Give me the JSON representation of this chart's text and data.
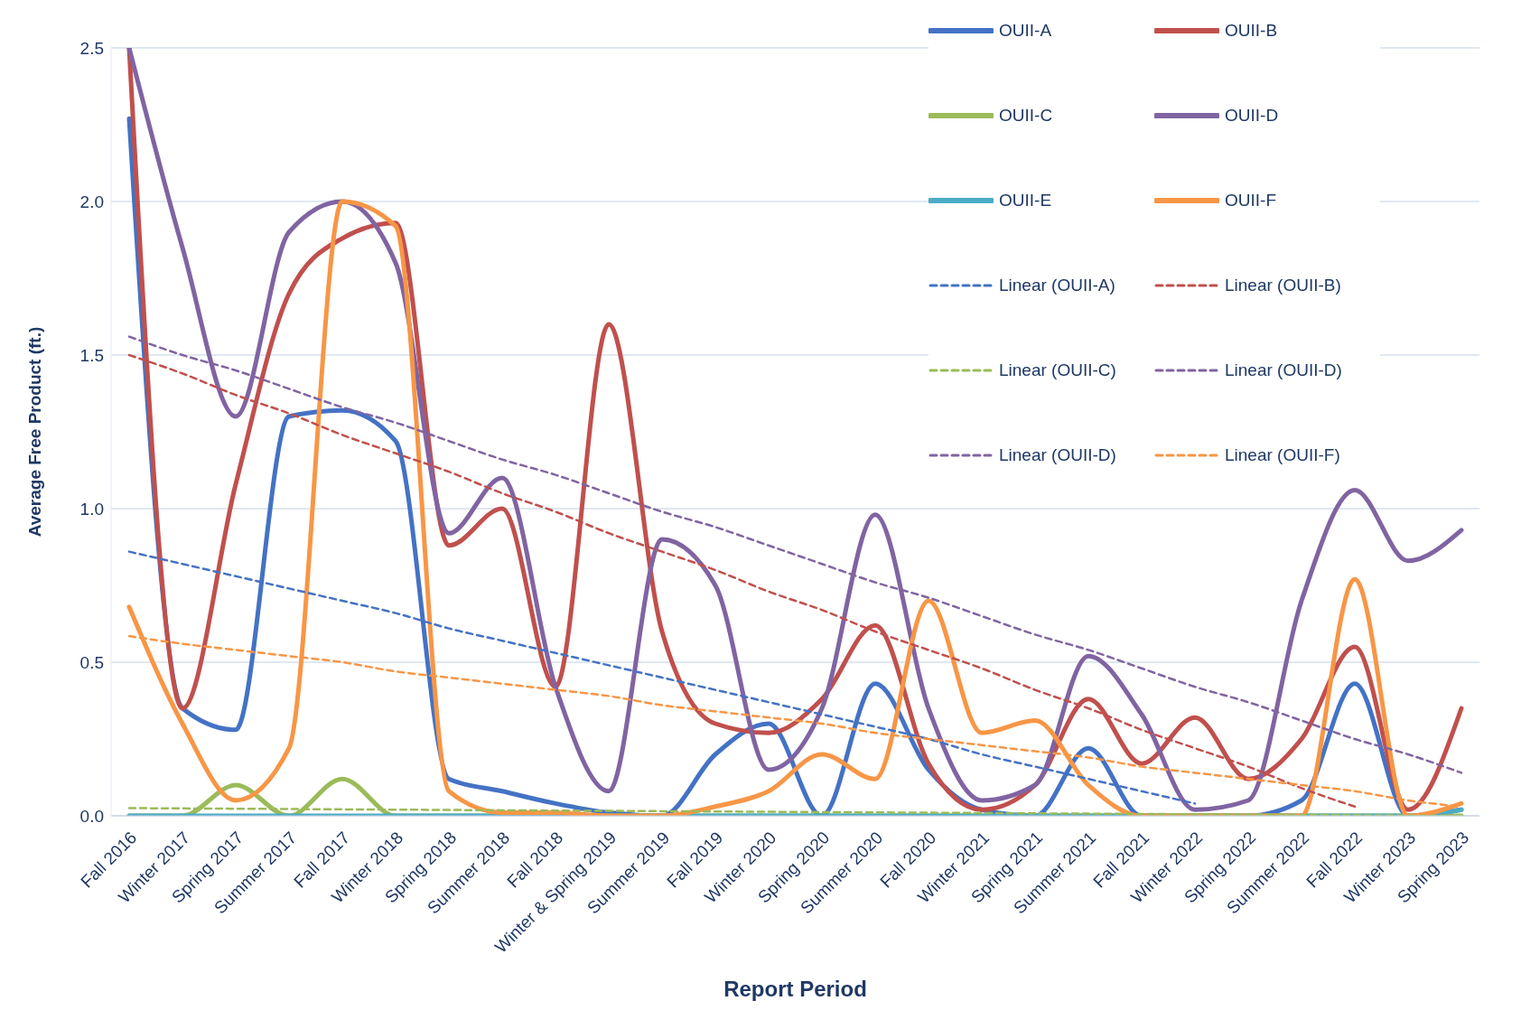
{
  "chart_data": {
    "type": "line",
    "xlabel": "Report Period",
    "ylabel": "Average Free Product (ft.)",
    "categories": [
      "Fall 2016",
      "Winter 2017",
      "Spring 2017",
      "Summer 2017",
      "Fall 2017",
      "Winter 2018",
      "Spring 2018",
      "Summer 2018",
      "Fall 2018",
      "Winter & Spring 2019",
      "Summer 2019",
      "Fall 2019",
      "Winter 2020",
      "Spring 2020",
      "Summer 2020",
      "Fall 2020",
      "Winter 2021",
      "Spring 2021",
      "Summer 2021",
      "Fall 2021",
      "Winter 2022",
      "Spring 2022",
      "Summer 2022",
      "Fall 2022",
      "Winter 2023",
      "Spring 2023"
    ],
    "ylim": [
      0,
      2.5
    ],
    "yticks": [
      {
        "value": 0,
        "label": "0.0"
      },
      {
        "value": 0.5,
        "label": "0.5"
      },
      {
        "value": 1,
        "label": "1.0"
      },
      {
        "value": 1.5,
        "label": "1.5"
      },
      {
        "value": 2,
        "label": "2.0"
      },
      {
        "value": 2.5,
        "label": "2.5"
      }
    ],
    "grid": "y",
    "legend": "top right",
    "marker": "none",
    "line_style": "solid",
    "series": [
      {
        "name": "OUII-A",
        "color": "#4472c4",
        "values": [
          2.27,
          0.35,
          0.28,
          1.3,
          1.32,
          1.22,
          0.12,
          0.08,
          0.04,
          0.01,
          0,
          0.2,
          0.3,
          0,
          0.43,
          0.15,
          0.02,
          0,
          0.22,
          0,
          0,
          0,
          0.05,
          0.43,
          0,
          0.02
        ]
      },
      {
        "name": "OUII-B",
        "color": "#c0504d",
        "values": [
          2.5,
          0.35,
          1.08,
          1.7,
          1.88,
          1.93,
          0.88,
          1,
          0.42,
          1.6,
          0.6,
          0.3,
          0.27,
          0.38,
          0.62,
          0.17,
          0.02,
          0.1,
          0.38,
          0.17,
          0.32,
          0.12,
          0.25,
          0.55,
          0.02,
          0.35
        ]
      },
      {
        "name": "OUII-C",
        "color": "#9bbb59",
        "values": [
          0,
          0,
          0.1,
          0,
          0.12,
          0,
          0,
          0,
          0,
          0,
          0,
          0,
          0,
          0,
          0,
          0,
          0,
          0,
          0,
          0,
          0,
          0,
          0,
          0,
          0,
          0
        ]
      },
      {
        "name": "OUII-D",
        "color": "#8064a2",
        "values": [
          2.5,
          1.85,
          1.3,
          1.9,
          2,
          1.8,
          0.92,
          1.1,
          0.42,
          0.08,
          0.9,
          0.75,
          0.15,
          0.35,
          0.98,
          0.35,
          0.05,
          0.1,
          0.52,
          0.33,
          0.02,
          0.05,
          0.7,
          1.06,
          0.83,
          0.93
        ]
      },
      {
        "name": "OUII-E",
        "color": "#4bacc6",
        "values": [
          0,
          0,
          0,
          0,
          0,
          0,
          0,
          0,
          0,
          0,
          0,
          0,
          0,
          0,
          0,
          0,
          0,
          0,
          0,
          0,
          0,
          0,
          0,
          0,
          0,
          0.02
        ]
      },
      {
        "name": "OUII-F",
        "color": "#f79646",
        "values": [
          0.68,
          0.3,
          0.05,
          0.22,
          2,
          1.92,
          0.08,
          0.01,
          0.01,
          0,
          0,
          0.03,
          0.08,
          0.2,
          0.12,
          0.7,
          0.27,
          0.31,
          0.1,
          0,
          0,
          0,
          0,
          0.77,
          0,
          0.04
        ]
      },
      {
        "name": "Linear (OUII-A)",
        "type": "line",
        "line_style": "dashed",
        "color": "#4472c4",
        "values": [
          0.86,
          0.82,
          0.78,
          0.74,
          0.7,
          0.66,
          0.61,
          0.57,
          0.53,
          0.49,
          0.45,
          0.41,
          0.37,
          0.33,
          0.29,
          0.25,
          0.2,
          0.16,
          0.12,
          0.08,
          0.04,
          null,
          null,
          null,
          null,
          null
        ]
      },
      {
        "name": "Linear (OUII-B)",
        "type": "line",
        "line_style": "dashed",
        "color": "#c0504d",
        "values": [
          1.5,
          1.44,
          1.37,
          1.31,
          1.24,
          1.18,
          1.12,
          1.05,
          0.99,
          0.92,
          0.86,
          0.8,
          0.73,
          0.67,
          0.6,
          0.54,
          0.48,
          0.41,
          0.35,
          0.28,
          0.22,
          0.16,
          0.09,
          0.03,
          null,
          null
        ]
      },
      {
        "name": "Linear (OUII-C)",
        "type": "line",
        "line_style": "dashed",
        "color": "#9bbb59",
        "values": [
          0.025,
          0.024,
          0.023,
          0.022,
          0.021,
          0.02,
          0.019,
          0.018,
          0.017,
          0.016,
          0.015,
          0.014,
          0.013,
          0.012,
          0.011,
          0.01,
          0.009,
          0.008,
          0.007,
          0.006,
          0.005,
          0.004,
          0.003,
          0.002,
          0.001,
          0
        ]
      },
      {
        "name": "Linear (OUII-D)",
        "type": "line",
        "line_style": "dashed",
        "color": "#8064a2",
        "values": [
          1.56,
          1.5,
          1.45,
          1.39,
          1.33,
          1.28,
          1.22,
          1.16,
          1.11,
          1.05,
          0.99,
          0.94,
          0.88,
          0.82,
          0.76,
          0.71,
          0.65,
          0.59,
          0.54,
          0.48,
          0.42,
          0.37,
          0.31,
          0.25,
          0.2,
          0.14
        ]
      },
      {
        "name": "Linear (OUII-D)",
        "type": "line",
        "line_style": "dashed",
        "color": "#8064a2",
        "values": [
          null,
          null,
          null,
          null,
          null,
          null,
          null,
          null,
          null,
          null,
          null,
          null,
          null,
          null,
          null,
          null,
          null,
          null,
          null,
          null,
          null,
          null,
          null,
          null,
          null,
          null
        ]
      },
      {
        "name": "Linear (OUII-F)",
        "type": "line",
        "line_style": "dashed",
        "color": "#f79646",
        "values": [
          0.585,
          0.56,
          0.54,
          0.52,
          0.5,
          0.47,
          0.45,
          0.43,
          0.41,
          0.39,
          0.36,
          0.34,
          0.32,
          0.3,
          0.27,
          0.25,
          0.23,
          0.21,
          0.19,
          0.16,
          0.14,
          0.12,
          0.1,
          0.08,
          0.05,
          0.03
        ]
      }
    ]
  }
}
